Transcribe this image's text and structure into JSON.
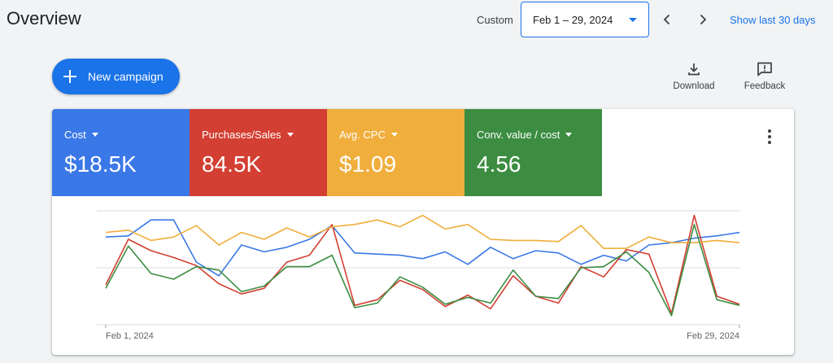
{
  "header": {
    "title": "Overview",
    "date_mode": "Custom",
    "date_range": "Feb 1 – 29, 2024",
    "show_last_label": "Show last 30 days"
  },
  "actions": {
    "new_campaign": "New campaign",
    "download": "Download",
    "feedback": "Feedback"
  },
  "colors": {
    "primary": "#1a73e8",
    "cost": "#3b78e7",
    "purchases": "#d33f32",
    "cpc": "#f0ae3c",
    "conv": "#3c8d41"
  },
  "metrics": [
    {
      "label": "Cost",
      "value": "$18.5K",
      "color": "#3b78e7"
    },
    {
      "label": "Purchases/Sales",
      "value": "84.5K",
      "color": "#d33f32"
    },
    {
      "label": "Avg. CPC",
      "value": "$1.09",
      "color": "#f0ae3c"
    },
    {
      "label": "Conv. value / cost",
      "value": "4.56",
      "color": "#3c8d41"
    }
  ],
  "chart_data": {
    "type": "line",
    "x_start_label": "Feb 1, 2024",
    "x_end_label": "Feb 29, 2024",
    "ylim": [
      0,
      100
    ],
    "grid": true,
    "series": [
      {
        "name": "Cost",
        "color": "#3b78e7",
        "values": [
          77,
          78,
          92,
          92,
          55,
          43,
          70,
          64,
          68,
          75,
          87,
          63,
          62,
          61,
          58,
          64,
          53,
          68,
          58,
          65,
          63,
          53,
          61,
          56,
          70,
          72,
          76,
          78,
          81
        ]
      },
      {
        "name": "Purchases/Sales",
        "color": "#d33f32",
        "values": [
          35,
          75,
          65,
          59,
          52,
          36,
          27,
          32,
          55,
          61,
          88,
          17,
          22,
          39,
          31,
          16,
          26,
          14,
          43,
          25,
          19,
          51,
          42,
          66,
          62,
          10,
          96,
          25,
          18
        ]
      },
      {
        "name": "Avg. CPC",
        "color": "#f0ae3c",
        "values": [
          81,
          83,
          74,
          77,
          87,
          70,
          81,
          75,
          85,
          77,
          86,
          88,
          92,
          86,
          96,
          84,
          88,
          75,
          74,
          74,
          73,
          87,
          67,
          67,
          77,
          72,
          72,
          74,
          72
        ]
      },
      {
        "name": "Conv. value / cost",
        "color": "#3c8d41",
        "values": [
          32,
          69,
          45,
          40,
          51,
          48,
          29,
          34,
          51,
          51,
          61,
          15,
          19,
          42,
          33,
          18,
          24,
          19,
          48,
          25,
          23,
          50,
          51,
          64,
          46,
          8,
          88,
          22,
          17
        ]
      }
    ]
  }
}
